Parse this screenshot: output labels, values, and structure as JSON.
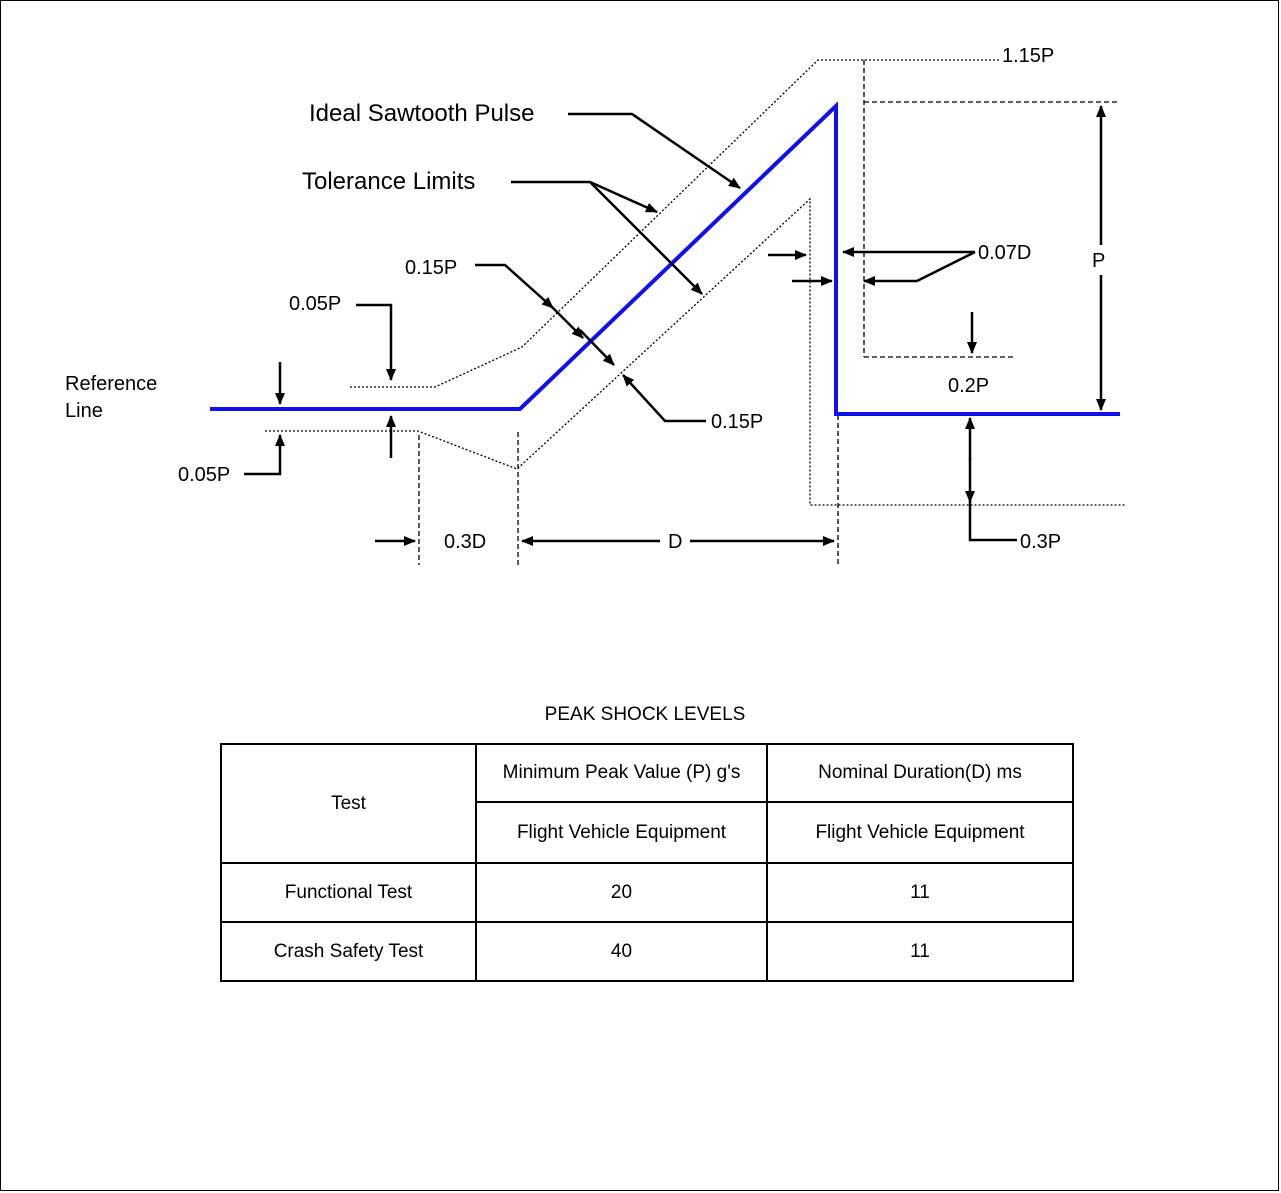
{
  "diagram": {
    "labels": {
      "ideal_pulse": "Ideal Sawtooth Pulse",
      "tolerance": "Tolerance Limits",
      "reference_line": [
        "Reference",
        "Line"
      ],
      "p115": "1.15P",
      "p": "P",
      "d007": "0.07D",
      "p015_upper": "0.15P",
      "p005_upper": "0.05P",
      "p005_lower": "0.05P",
      "p015_lower": "0.15P",
      "p02": "0.2P",
      "p03": "0.3P",
      "d03": "0.3D",
      "d": "D"
    },
    "colors": {
      "pulse": "#1010ee",
      "ink": "#000000"
    }
  },
  "table": {
    "title": "PEAK SHOCK LEVELS",
    "headers": {
      "test": "Test",
      "peak": "Minimum Peak Value (P) g's",
      "duration": "Nominal Duration(D) ms",
      "peak_sub": "Flight Vehicle Equipment",
      "duration_sub": "Flight Vehicle Equipment"
    },
    "rows": [
      {
        "test": "Functional Test",
        "peak": "20",
        "duration": "11"
      },
      {
        "test": "Crash Safety Test",
        "peak": "40",
        "duration": "11"
      }
    ]
  }
}
